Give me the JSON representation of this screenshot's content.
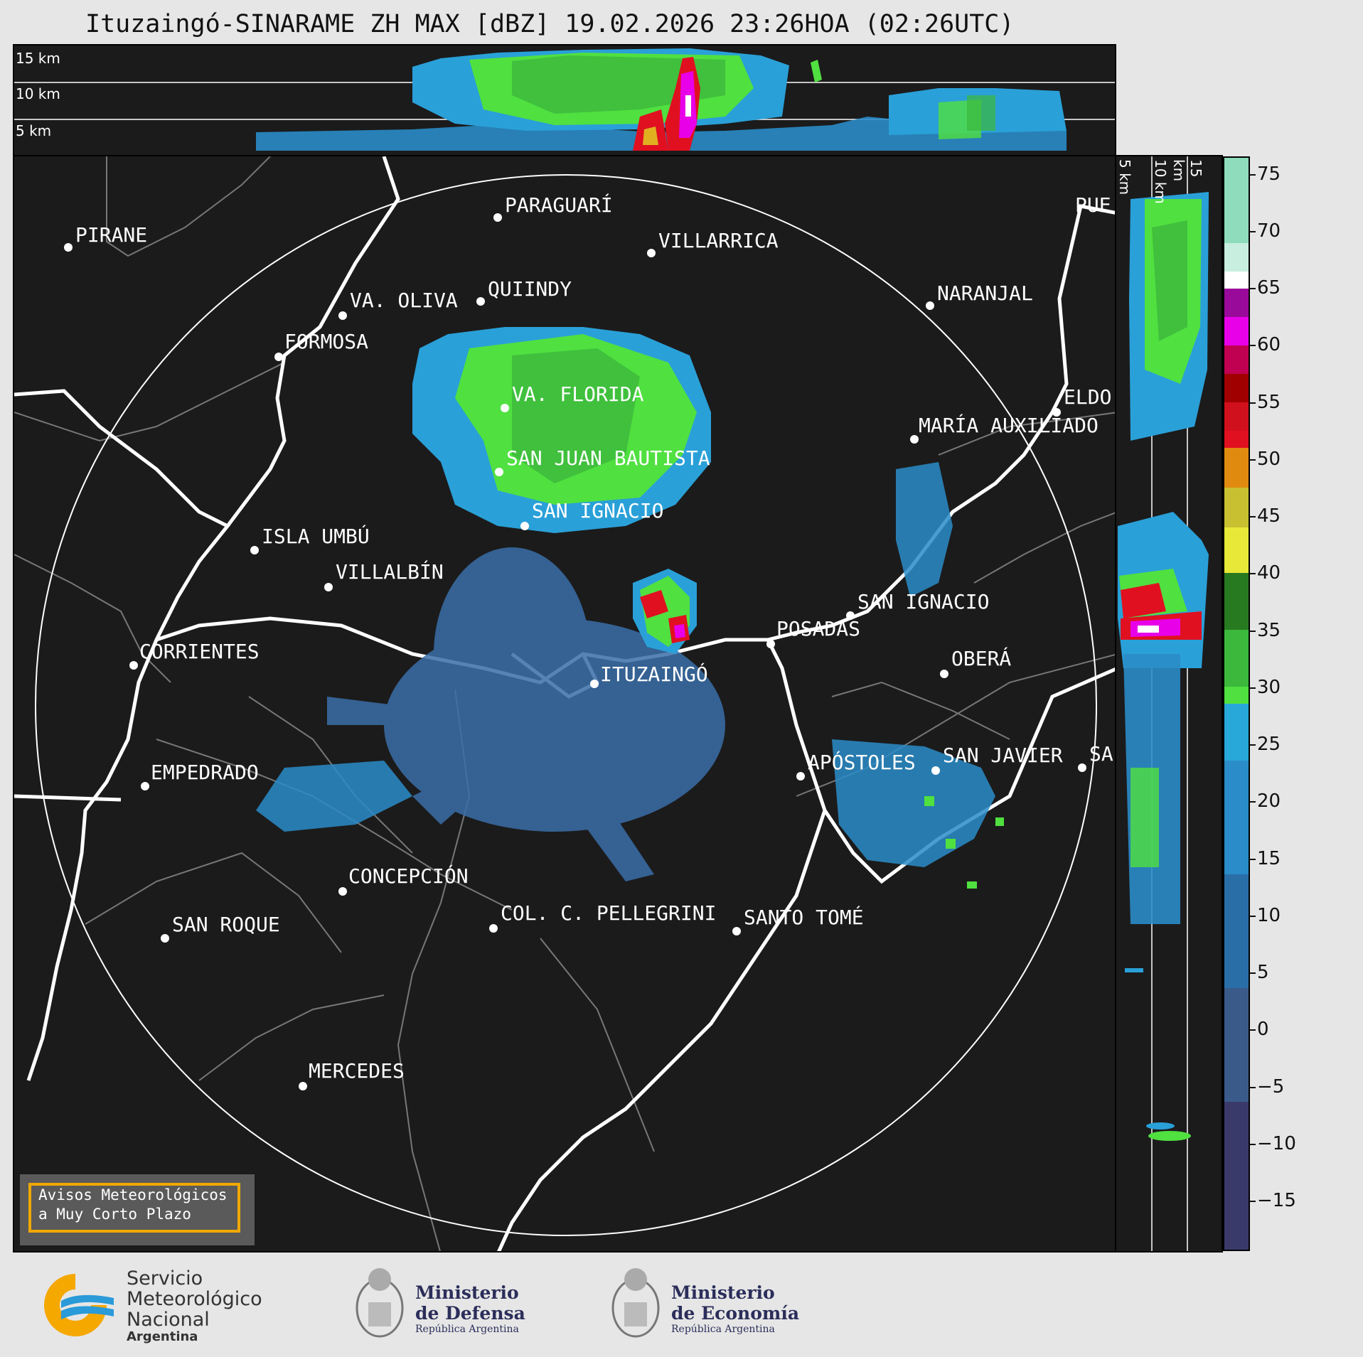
{
  "title": "Ituzaingó-SINARAME ZH MAX [dBZ] 19.02.2026 23:26HOA (02:26UTC)",
  "top_panel": {
    "altitude_labels": [
      "15 km",
      "10 km",
      "5 km"
    ]
  },
  "side_panel": {
    "altitude_labels": [
      "5 km",
      "10 km",
      "15 km"
    ]
  },
  "colorbar": {
    "unit": "dBZ",
    "ticks": [
      "75",
      "70",
      "65",
      "60",
      "55",
      "50",
      "45",
      "40",
      "35",
      "30",
      "25",
      "20",
      "15",
      "10",
      "5",
      "0",
      "−5",
      "−10",
      "−15"
    ],
    "range": [
      -20,
      77
    ],
    "colors": {
      "light_teal": "#8edcbc",
      "white": "#ffffff",
      "purple": "#9a0a9a",
      "magenta": "#e800e8",
      "crimson": "#c00050",
      "dark_red": "#a00000",
      "red": "#e01020",
      "orange": "#e08a10",
      "olive": "#c8c030",
      "yellow": "#e8e838",
      "dark_green": "#287a20",
      "green": "#3cb83c",
      "light_green": "#50e040",
      "cyan": "#28a8d8",
      "blue": "#2a6ea8",
      "slate": "#3a5a8a",
      "navy": "#3a3a6a"
    }
  },
  "cities": [
    {
      "name": "PIRANE"
    },
    {
      "name": "PARAGUARÍ"
    },
    {
      "name": "VILLARRICA"
    },
    {
      "name": "QUIINDY"
    },
    {
      "name": "VA. OLIVA"
    },
    {
      "name": "FORMOSA"
    },
    {
      "name": "NARANJAL"
    },
    {
      "name": "PUE"
    },
    {
      "name": "VA. FLORIDA"
    },
    {
      "name": "ELDO"
    },
    {
      "name": "MARÍA AUXILIADO"
    },
    {
      "name": "SAN JUAN BAUTISTA"
    },
    {
      "name": "SAN IGNACIO"
    },
    {
      "name": "ISLA UMBÚ"
    },
    {
      "name": "VILLALBÍN"
    },
    {
      "name": "SAN IGNACIO"
    },
    {
      "name": "POSADAS"
    },
    {
      "name": "CORRIENTES"
    },
    {
      "name": "ITUZAINGÓ"
    },
    {
      "name": "OBERÁ"
    },
    {
      "name": "EMPEDRADO"
    },
    {
      "name": "APÓSTOLES"
    },
    {
      "name": "SAN JAVIER"
    },
    {
      "name": "SA"
    },
    {
      "name": "CONCEPCIÓN"
    },
    {
      "name": "SAN ROQUE"
    },
    {
      "name": "COL. C. PELLEGRINI"
    },
    {
      "name": "SANTO TOMÉ"
    },
    {
      "name": "MERCEDES"
    }
  ],
  "warning_box": {
    "line1": "Avisos Meteorológicos",
    "line2": "a Muy Corto Plazo"
  },
  "logos": {
    "smn": {
      "line1": "Servicio",
      "line2": "Meteorológico",
      "line3": "Nacional",
      "line4": "Argentina"
    },
    "defensa": {
      "line1": "Ministerio",
      "line2": "de Defensa",
      "line3": "República Argentina"
    },
    "economia": {
      "line1": "Ministerio",
      "line2": "de Economía",
      "line3": "República Argentina"
    }
  }
}
